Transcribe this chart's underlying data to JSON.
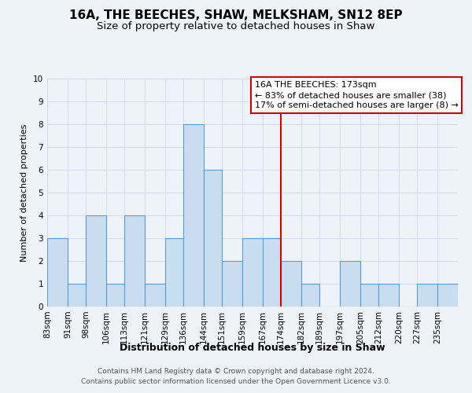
{
  "title": "16A, THE BEECHES, SHAW, MELKSHAM, SN12 8EP",
  "subtitle": "Size of property relative to detached houses in Shaw",
  "xlabel": "Distribution of detached houses by size in Shaw",
  "ylabel": "Number of detached properties",
  "bin_labels": [
    "83sqm",
    "91sqm",
    "98sqm",
    "106sqm",
    "113sqm",
    "121sqm",
    "129sqm",
    "136sqm",
    "144sqm",
    "151sqm",
    "159sqm",
    "167sqm",
    "174sqm",
    "182sqm",
    "189sqm",
    "197sqm",
    "205sqm",
    "212sqm",
    "220sqm",
    "227sqm",
    "235sqm"
  ],
  "bin_edges": [
    83,
    91,
    98,
    106,
    113,
    121,
    129,
    136,
    144,
    151,
    159,
    167,
    174,
    182,
    189,
    197,
    205,
    212,
    220,
    227,
    235,
    243
  ],
  "bar_heights": [
    3,
    1,
    4,
    1,
    4,
    1,
    3,
    8,
    6,
    2,
    3,
    3,
    2,
    1,
    0,
    2,
    1,
    1,
    0,
    1,
    1
  ],
  "bar_color": "#c9ddf0",
  "bar_edge_color": "#5b9bd5",
  "vline_x": 174,
  "vline_color": "#cc0000",
  "ylim": [
    0,
    10
  ],
  "yticks": [
    0,
    1,
    2,
    3,
    4,
    5,
    6,
    7,
    8,
    9,
    10
  ],
  "grid_color": "#d4dbe8",
  "background_color": "#eef2f9",
  "annotation_title": "16A THE BEECHES: 173sqm",
  "annotation_line1": "← 83% of detached houses are smaller (38)",
  "annotation_line2": "17% of semi-detached houses are larger (8) →",
  "annotation_box_color": "#ffffff",
  "annotation_border_color": "#cc0000",
  "footer_line1": "Contains HM Land Registry data © Crown copyright and database right 2024.",
  "footer_line2": "Contains public sector information licensed under the Open Government Licence v3.0.",
  "title_fontsize": 11,
  "subtitle_fontsize": 9.5,
  "xlabel_fontsize": 9,
  "ylabel_fontsize": 8,
  "tick_fontsize": 7.5,
  "annotation_fontsize": 8,
  "footer_fontsize": 6.5
}
